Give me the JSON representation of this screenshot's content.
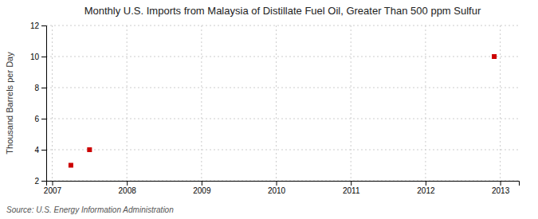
{
  "chart_data": {
    "type": "scatter",
    "title": "Monthly U.S. Imports from Malaysia of Distillate Fuel Oil, Greater Than 500 ppm Sulfur",
    "y_label": "Thousand Barrels per Day",
    "annotations": [
      "Source: U.S. Energy Information Administration"
    ],
    "x": [
      2007.25,
      2007.5,
      2012.92
    ],
    "values": [
      3.0,
      4.0,
      10.0
    ],
    "color": "#cc0000",
    "marker": "square",
    "xlim": [
      2006.92,
      2013.25
    ],
    "ylim": [
      2,
      12
    ],
    "xticks": [
      2007,
      2008,
      2009,
      2010,
      2011,
      2012,
      2013
    ],
    "yticks": [
      2,
      4,
      6,
      8,
      10,
      12
    ],
    "grid": true
  }
}
